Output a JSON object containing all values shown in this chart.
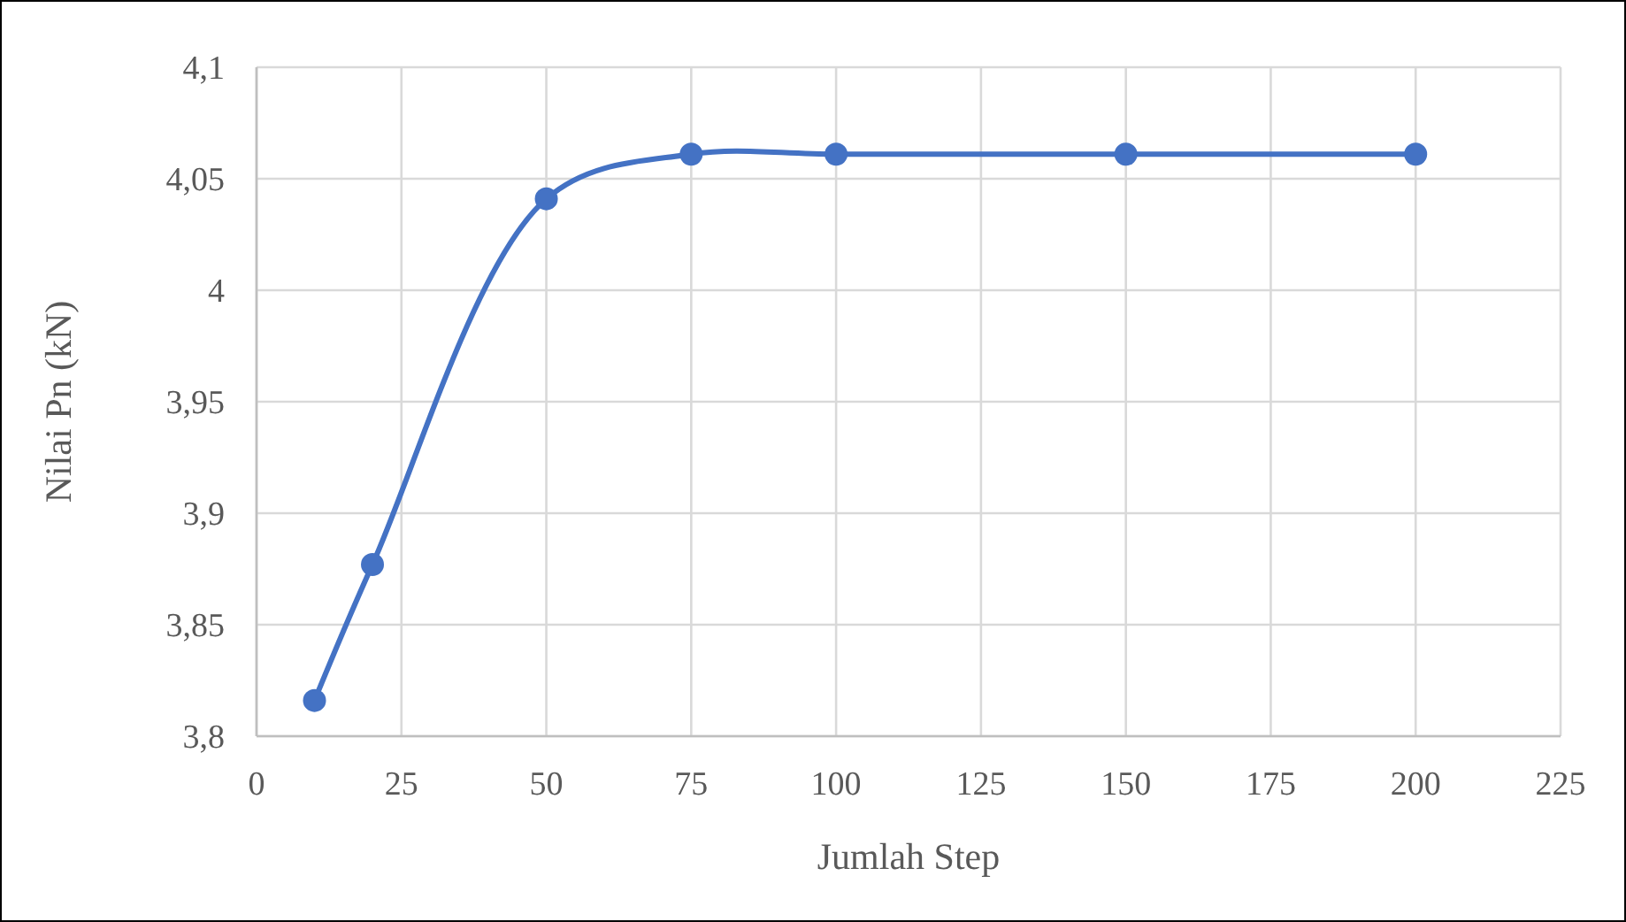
{
  "chart_data": {
    "type": "line",
    "xlabel": "Jumlah Step",
    "ylabel": "Nilai Pn (kN)",
    "x": [
      10,
      20,
      50,
      75,
      100,
      150,
      200
    ],
    "series": [
      {
        "color": "#4472c4",
        "values": [
          3.816,
          3.877,
          4.041,
          4.061,
          4.061,
          4.061,
          4.061
        ]
      }
    ],
    "xlim": [
      0,
      225
    ],
    "xticks": [
      0,
      25,
      50,
      75,
      100,
      125,
      150,
      175,
      200,
      225
    ],
    "ylim": [
      3.8,
      4.1
    ],
    "yticks": [
      {
        "value": 3.8,
        "label": "3,8"
      },
      {
        "value": 3.85,
        "label": "3,85"
      },
      {
        "value": 3.9,
        "label": "3,9"
      },
      {
        "value": 3.95,
        "label": "3,95"
      },
      {
        "value": 4,
        "label": "4"
      },
      {
        "value": 4.05,
        "label": "4,05"
      },
      {
        "value": 4.1,
        "label": "4,1"
      }
    ],
    "grid": true,
    "marker": "circle",
    "line_style": "solid"
  }
}
